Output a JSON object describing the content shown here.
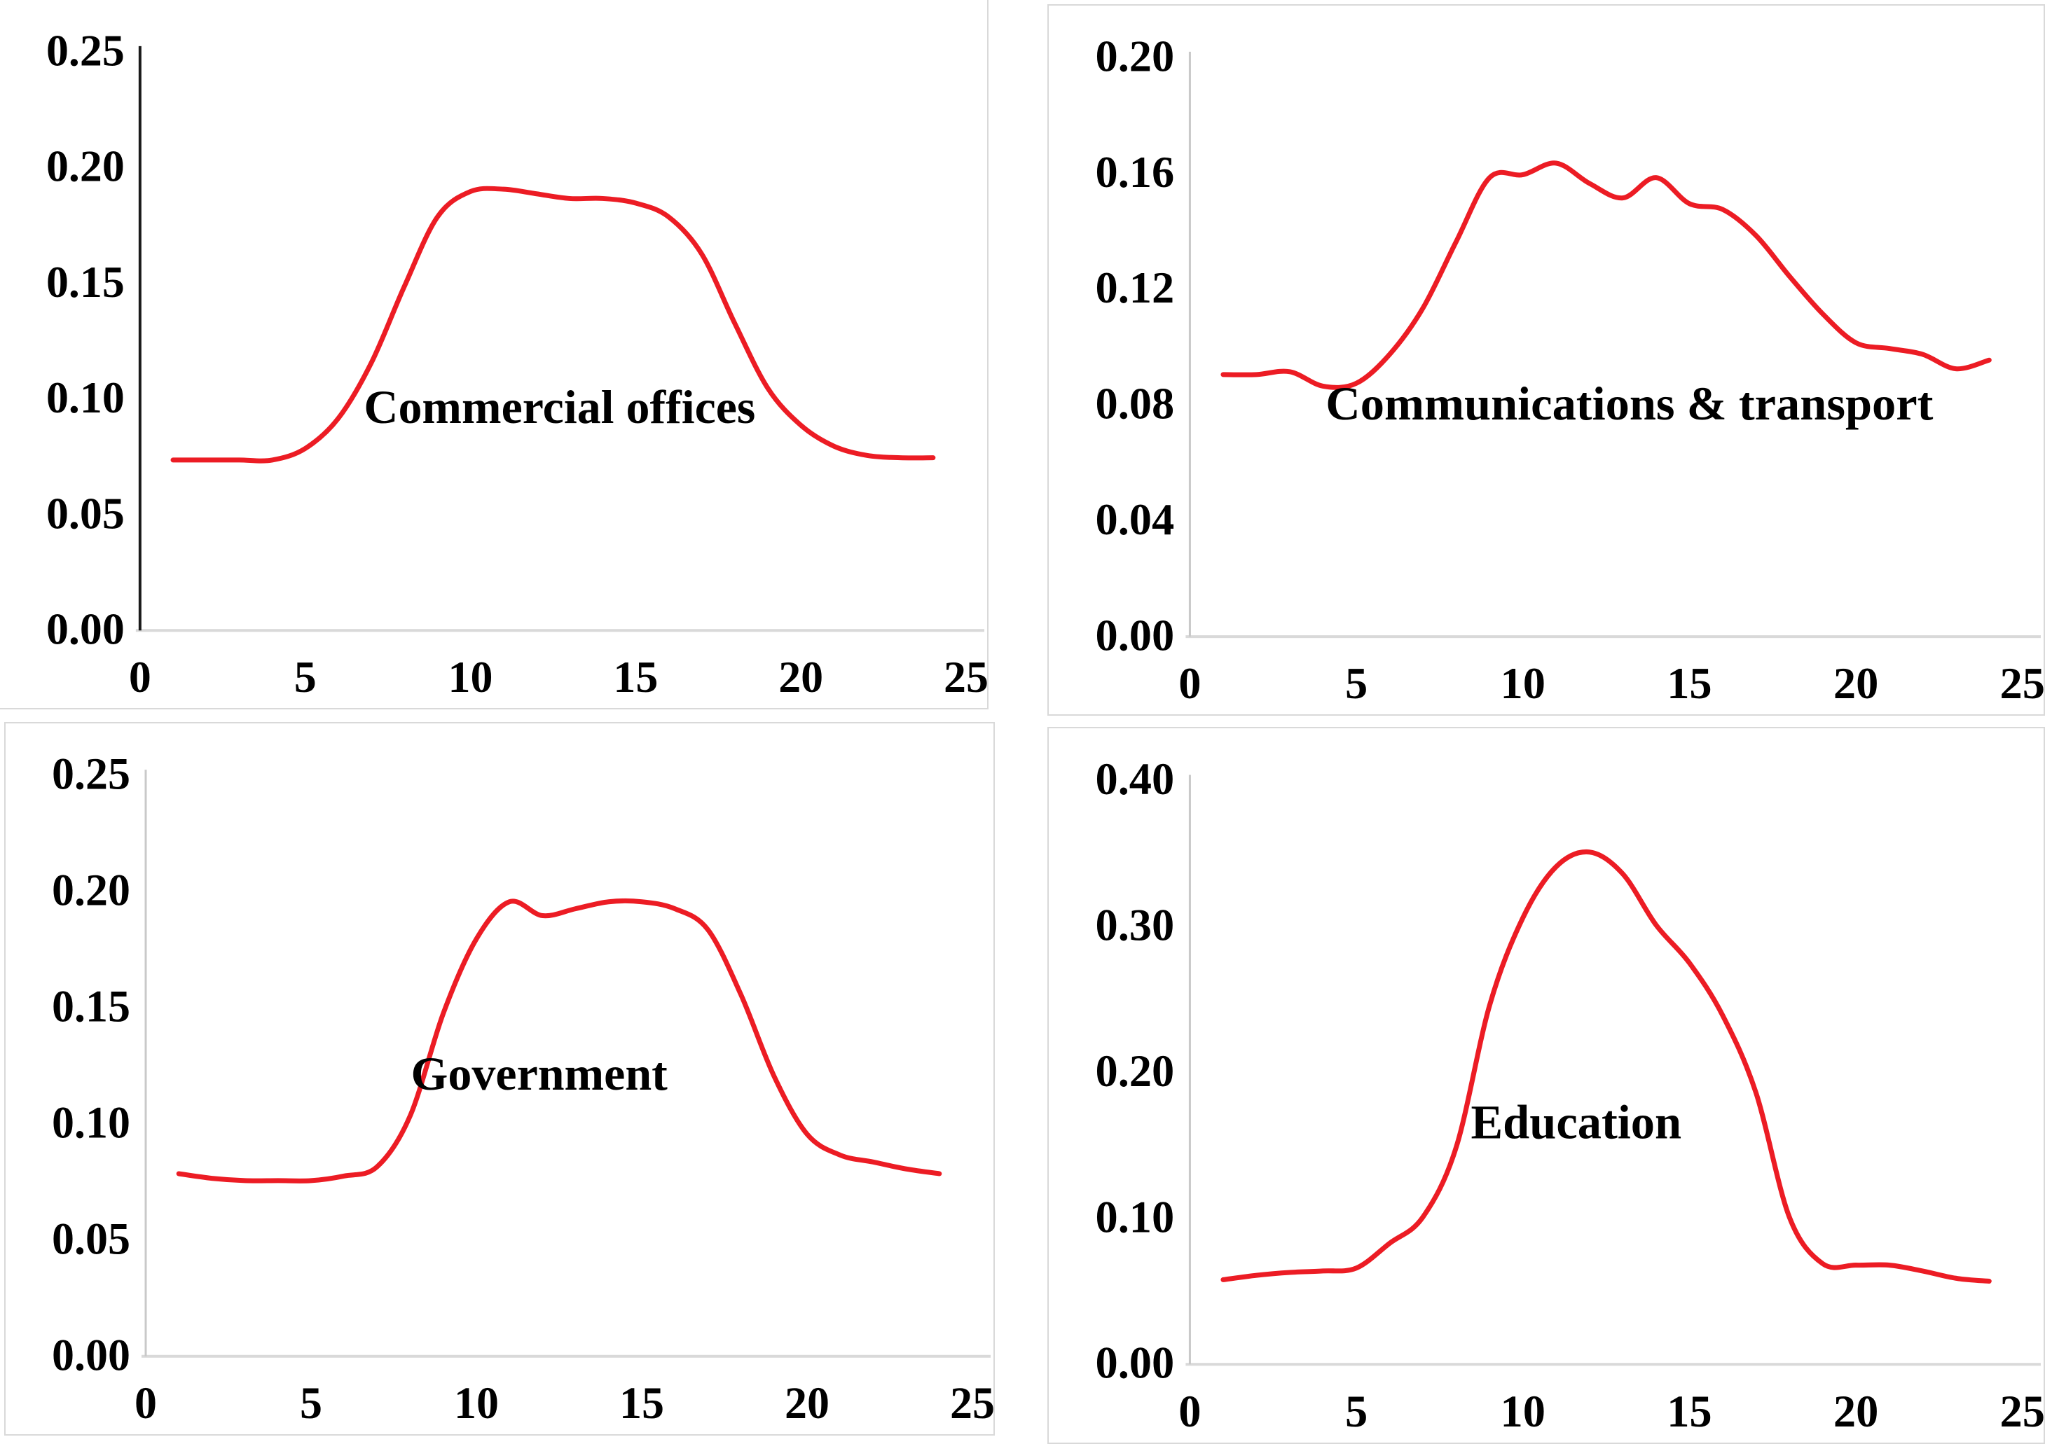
{
  "page": {
    "background_color": "#ffffff",
    "panel_border_color": "#d9d9d9",
    "description_counts": {
      "charts": 4
    }
  },
  "chart_data": [
    {
      "id": "commercial-offices",
      "type": "line",
      "title": "Commercial offices",
      "series_color": "#ec1c24",
      "y_axis_color": "#1a1a1a",
      "y_axis_width": 4,
      "x_axis_color": "#d9d9d9",
      "xlim": [
        0,
        25
      ],
      "ylim": [
        0,
        0.25
      ],
      "x_ticks": [
        "0",
        "5",
        "10",
        "15",
        "20",
        "25"
      ],
      "y_ticks": [
        "0.00",
        "0.05",
        "0.10",
        "0.15",
        "0.20",
        "0.25"
      ],
      "grid": "off",
      "legend": "none",
      "title_anchor": {
        "x_unit": 12.7,
        "y_value": 0.096
      },
      "x": [
        1,
        2,
        3,
        4,
        5,
        6,
        7,
        8,
        9,
        10,
        11,
        12,
        13,
        14,
        15,
        16,
        17,
        18,
        19,
        20,
        21,
        22,
        23,
        24
      ],
      "values": [
        0.073,
        0.073,
        0.073,
        0.073,
        0.078,
        0.091,
        0.115,
        0.148,
        0.178,
        0.189,
        0.19,
        0.188,
        0.186,
        0.186,
        0.184,
        0.178,
        0.162,
        0.132,
        0.104,
        0.088,
        0.079,
        0.075,
        0.074,
        0.074
      ]
    },
    {
      "id": "communications-transport",
      "type": "line",
      "title": "Communications & transport",
      "series_color": "#ec1c24",
      "y_axis_color": "#c9c9c9",
      "y_axis_width": 3,
      "x_axis_color": "#d9d9d9",
      "xlim": [
        0,
        25
      ],
      "ylim": [
        0,
        0.2
      ],
      "x_ticks": [
        "0",
        "5",
        "10",
        "15",
        "20",
        "25"
      ],
      "y_ticks": [
        "0.00",
        "0.04",
        "0.08",
        "0.12",
        "0.16",
        "0.20"
      ],
      "grid": "off",
      "legend": "none",
      "title_anchor": {
        "x_unit": 13.2,
        "y_value": 0.08
      },
      "x": [
        1,
        2,
        3,
        4,
        5,
        6,
        7,
        8,
        9,
        10,
        11,
        12,
        13,
        14,
        15,
        16,
        17,
        18,
        19,
        20,
        21,
        22,
        23,
        24
      ],
      "values": [
        0.09,
        0.09,
        0.091,
        0.086,
        0.087,
        0.097,
        0.113,
        0.136,
        0.158,
        0.159,
        0.163,
        0.156,
        0.151,
        0.158,
        0.149,
        0.147,
        0.138,
        0.124,
        0.111,
        0.101,
        0.099,
        0.097,
        0.092,
        0.095
      ]
    },
    {
      "id": "government",
      "type": "line",
      "title": "Government",
      "series_color": "#ec1c24",
      "y_axis_color": "#c9c9c9",
      "y_axis_width": 3,
      "x_axis_color": "#d9d9d9",
      "xlim": [
        0,
        25
      ],
      "ylim": [
        0,
        0.25
      ],
      "x_ticks": [
        "0",
        "5",
        "10",
        "15",
        "20",
        "25"
      ],
      "y_ticks": [
        "0.00",
        "0.05",
        "0.10",
        "0.15",
        "0.20",
        "0.25"
      ],
      "grid": "off",
      "legend": "none",
      "title_anchor": {
        "x_unit": 11.9,
        "y_value": 0.121
      },
      "x": [
        1,
        2,
        3,
        4,
        5,
        6,
        7,
        8,
        9,
        10,
        11,
        12,
        13,
        14,
        15,
        16,
        17,
        18,
        19,
        20,
        21,
        22,
        23,
        24
      ],
      "values": [
        0.078,
        0.076,
        0.075,
        0.075,
        0.075,
        0.077,
        0.081,
        0.103,
        0.147,
        0.179,
        0.195,
        0.189,
        0.192,
        0.195,
        0.195,
        0.192,
        0.183,
        0.155,
        0.12,
        0.095,
        0.086,
        0.083,
        0.08,
        0.078
      ]
    },
    {
      "id": "education",
      "type": "line",
      "title": "Education",
      "series_color": "#ec1c24",
      "y_axis_color": "#c9c9c9",
      "y_axis_width": 3,
      "x_axis_color": "#d9d9d9",
      "xlim": [
        0,
        25
      ],
      "ylim": [
        0,
        0.4
      ],
      "x_ticks": [
        "0",
        "5",
        "10",
        "15",
        "20",
        "25"
      ],
      "y_ticks": [
        "0.00",
        "0.10",
        "0.20",
        "0.30",
        "0.40"
      ],
      "grid": "off",
      "legend": "none",
      "title_anchor": {
        "x_unit": 11.6,
        "y_value": 0.165
      },
      "x": [
        1,
        2,
        3,
        4,
        5,
        6,
        7,
        8,
        9,
        10,
        11,
        12,
        13,
        14,
        15,
        16,
        17,
        18,
        19,
        20,
        21,
        22,
        23,
        24
      ],
      "values": [
        0.057,
        0.06,
        0.062,
        0.063,
        0.065,
        0.082,
        0.1,
        0.148,
        0.245,
        0.305,
        0.34,
        0.35,
        0.335,
        0.3,
        0.274,
        0.238,
        0.185,
        0.1,
        0.068,
        0.067,
        0.067,
        0.063,
        0.058,
        0.056
      ]
    }
  ]
}
